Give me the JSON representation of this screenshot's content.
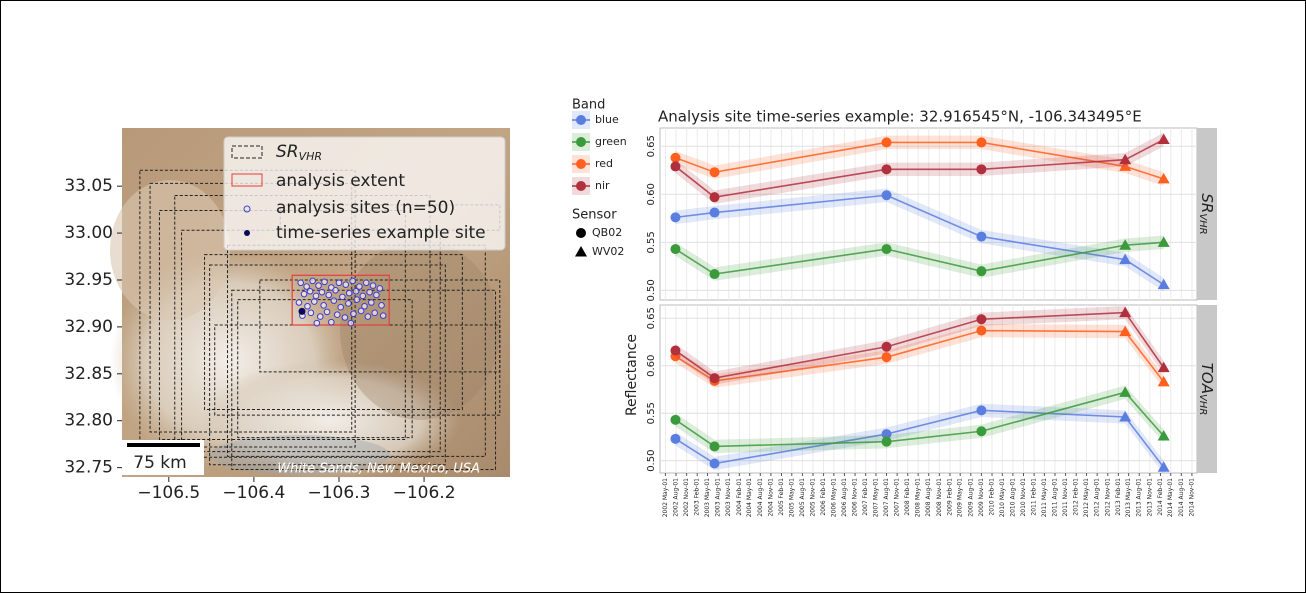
{
  "chart_data": [
    {
      "type": "map",
      "xlim": [
        -106.555,
        -106.099
      ],
      "ylim": [
        32.74,
        33.112
      ],
      "xticks": [
        {
          "value": -106.5,
          "label": "−106.5"
        },
        {
          "value": -106.4,
          "label": "−106.4"
        },
        {
          "value": -106.3,
          "label": "−106.3"
        },
        {
          "value": -106.2,
          "label": "−106.2"
        }
      ],
      "yticks": [
        32.75,
        {
          "value": 32.8,
          "label": "32.80"
        },
        32.85,
        {
          "value": 32.9,
          "label": "32.90"
        },
        32.95,
        {
          "value": 33.0,
          "label": "33.00"
        },
        33.05
      ],
      "footprint_color": "#222222",
      "extent_color": "#e83c3c",
      "site_color": "#3c3cd2",
      "example_color": "#0a0a5a",
      "footprints": [
        {
          "x": [
            -106.534,
            -106.281
          ],
          "y": [
            32.772,
            33.067
          ]
        },
        {
          "x": [
            -106.522,
            -106.285
          ],
          "y": [
            32.788,
            33.053
          ]
        },
        {
          "x": [
            -106.511,
            -106.222
          ],
          "y": [
            32.78,
            33.024
          ]
        },
        {
          "x": [
            -106.493,
            -106.193
          ],
          "y": [
            32.761,
            33.04
          ]
        },
        {
          "x": [
            -106.485,
            -106.181
          ],
          "y": [
            32.767,
            33.003
          ]
        },
        {
          "x": [
            -106.458,
            -106.155
          ],
          "y": [
            32.812,
            32.977
          ]
        },
        {
          "x": [
            -106.431,
            -106.128
          ],
          "y": [
            32.762,
            32.987
          ]
        },
        {
          "x": [
            -106.452,
            -106.175
          ],
          "y": [
            32.753,
            32.966
          ]
        },
        {
          "x": [
            -106.393,
            -106.111
          ],
          "y": [
            32.852,
            32.95
          ]
        },
        {
          "x": [
            -106.426,
            -106.116
          ],
          "y": [
            32.748,
            32.939
          ]
        },
        {
          "x": [
            -106.419,
            -106.214
          ],
          "y": [
            32.782,
            32.929
          ]
        },
        {
          "x": [
            -106.446,
            -106.111
          ],
          "y": [
            32.806,
            32.902
          ]
        },
        {
          "x": [
            -106.369,
            -106.111
          ],
          "y": [
            33.003,
            33.03
          ]
        }
      ],
      "extent": {
        "x": [
          -106.355,
          -106.241
        ],
        "y": [
          32.902,
          32.955
        ]
      },
      "sites": {
        "x": [
          -106.345,
          -106.338,
          -106.331,
          -106.324,
          -106.317,
          -106.309,
          -106.3,
          -106.292,
          -106.284,
          -106.276,
          -106.268,
          -106.26,
          -106.252,
          -106.341,
          -106.334,
          -106.327,
          -106.32,
          -106.312,
          -106.304,
          -106.296,
          -106.288,
          -106.28,
          -106.272,
          -106.264,
          -106.256,
          -106.347,
          -106.337,
          -106.329,
          -106.318,
          -106.306,
          -106.298,
          -106.289,
          -106.279,
          -106.27,
          -106.262,
          -106.25,
          -106.343,
          -106.333,
          -106.322,
          -106.314,
          -106.302,
          -106.293,
          -106.283,
          -106.274,
          -106.266,
          -106.258,
          -106.248,
          -106.326,
          -106.309,
          -106.286
        ],
        "y": [
          32.947,
          32.943,
          32.949,
          32.944,
          32.948,
          32.942,
          32.947,
          32.945,
          32.949,
          32.943,
          32.947,
          32.944,
          32.941,
          32.935,
          32.938,
          32.933,
          32.937,
          32.934,
          32.939,
          32.932,
          32.936,
          32.938,
          32.933,
          32.937,
          32.934,
          32.926,
          32.922,
          32.927,
          32.923,
          32.928,
          32.921,
          32.925,
          32.929,
          32.922,
          32.926,
          32.923,
          32.912,
          32.915,
          32.911,
          32.916,
          32.913,
          32.91,
          32.914,
          32.917,
          32.911,
          32.915,
          32.912,
          32.904,
          32.905,
          32.904
        ]
      },
      "example_site": {
        "x": -106.343495,
        "y": 32.916545
      },
      "legend": [
        {
          "label": "SR",
          "sub": "VHR"
        },
        {
          "label": "analysis extent"
        },
        {
          "label": "analysis sites (n=50)"
        },
        {
          "label": "time-series example site"
        }
      ],
      "scale_bar": "75 km",
      "annotation": "White Sands, New Mexico, USA"
    },
    {
      "type": "line",
      "title": "Analysis site time-series example: 32.916545°N, -106.343495°E",
      "ylabel": "Reflectance",
      "band_title": "Band",
      "sensor_title": "Sensor",
      "bands": [
        {
          "name": "blue",
          "color": "#5a7de0"
        },
        {
          "name": "green",
          "color": "#3b9a3b"
        },
        {
          "name": "red",
          "color": "#ff6020"
        },
        {
          "name": "nir",
          "color": "#b0303e"
        }
      ],
      "sensors": [
        {
          "name": "QB02",
          "marker": "circle"
        },
        {
          "name": "WV02",
          "marker": "triangle"
        }
      ],
      "x": [
        "2002-07-27",
        "2003-07-01",
        "2007-08-01",
        "2009-11-01",
        "2013-04-01",
        "2014-03-01"
      ],
      "sensor": [
        0,
        0,
        0,
        0,
        1,
        1
      ],
      "xlim": [
        "2002-03-15",
        "2014-12-15"
      ],
      "xticks": [
        {
          "value": "2002-05-01",
          "label": "2002 May-01"
        },
        {
          "value": "2002-08-01",
          "label": "2002 Aug-01"
        },
        {
          "value": "2002-11-01",
          "label": "2002 Nov-01"
        },
        {
          "value": "2003-02-01",
          "label": "2003 Feb-01"
        },
        {
          "value": "2003-05-01",
          "label": "2003 May-01"
        },
        {
          "value": "2003-08-01",
          "label": "2003 Aug-01"
        },
        {
          "value": "2003-11-01",
          "label": "2003 Nov-01"
        },
        {
          "value": "2004-02-01",
          "label": "2004 Feb-01"
        },
        {
          "value": "2004-05-01",
          "label": "2004 May-01"
        },
        {
          "value": "2004-08-01",
          "label": "2004 Aug-01"
        },
        {
          "value": "2004-11-01",
          "label": "2004 Nov-01"
        },
        {
          "value": "2005-02-01",
          "label": "2005 Feb-01"
        },
        {
          "value": "2005-05-01",
          "label": "2005 May-01"
        },
        {
          "value": "2005-08-01",
          "label": "2005 Aug-01"
        },
        {
          "value": "2005-11-01",
          "label": "2005 Nov-01"
        },
        {
          "value": "2006-02-01",
          "label": "2006 Feb-01"
        },
        {
          "value": "2006-05-01",
          "label": "2006 May-01"
        },
        {
          "value": "2006-08-01",
          "label": "2006 Aug-01"
        },
        {
          "value": "2006-11-01",
          "label": "2006 Nov-01"
        },
        {
          "value": "2007-02-01",
          "label": "2007 Feb-01"
        },
        {
          "value": "2007-05-01",
          "label": "2007 May-01"
        },
        {
          "value": "2007-08-01",
          "label": "2007 Aug-01"
        },
        {
          "value": "2007-11-01",
          "label": "2007 Nov-01"
        },
        {
          "value": "2008-02-01",
          "label": "2008 Feb-01"
        },
        {
          "value": "2008-05-01",
          "label": "2008 May-01"
        },
        {
          "value": "2008-08-01",
          "label": "2008 Aug-01"
        },
        {
          "value": "2008-11-01",
          "label": "2008 Nov-01"
        },
        {
          "value": "2009-02-01",
          "label": "2009 Feb-01"
        },
        {
          "value": "2009-05-01",
          "label": "2009 May-01"
        },
        {
          "value": "2009-08-01",
          "label": "2009 Aug-01"
        },
        {
          "value": "2009-11-01",
          "label": "2009 Nov-01"
        },
        {
          "value": "2010-02-01",
          "label": "2010 Feb-01"
        },
        {
          "value": "2010-05-01",
          "label": "2010 May-01"
        },
        {
          "value": "2010-08-01",
          "label": "2010 Aug-01"
        },
        {
          "value": "2010-11-01",
          "label": "2010 Nov-01"
        },
        {
          "value": "2011-02-01",
          "label": "2011 Feb-01"
        },
        {
          "value": "2011-05-01",
          "label": "2011 May-01"
        },
        {
          "value": "2011-08-01",
          "label": "2011 Aug-01"
        },
        {
          "value": "2011-11-01",
          "label": "2011 Nov-01"
        },
        {
          "value": "2012-02-01",
          "label": "2012 Feb-01"
        },
        {
          "value": "2012-05-01",
          "label": "2012 May-01"
        },
        {
          "value": "2012-08-01",
          "label": "2012 Aug-01"
        },
        {
          "value": "2012-11-01",
          "label": "2012 Nov-01"
        },
        {
          "value": "2013-02-01",
          "label": "2013 Feb-01"
        },
        {
          "value": "2013-05-01",
          "label": "2013 May-01"
        },
        {
          "value": "2013-08-01",
          "label": "2013 Aug-01"
        },
        {
          "value": "2013-11-01",
          "label": "2013 Nov-01"
        },
        {
          "value": "2014-02-01",
          "label": "2014 Feb-01"
        },
        {
          "value": "2014-05-01",
          "label": "2014 May-01"
        },
        {
          "value": "2014-08-01",
          "label": "2014 Aug-01"
        },
        {
          "value": "2014-11-01",
          "label": "2014 Nov-01"
        }
      ],
      "grid": true,
      "facets": [
        {
          "label": "SR",
          "sub": "VHR",
          "ylim": [
            0.49,
            0.669
          ],
          "ribbon": 0.007,
          "yticks": [
            {
              "value": 0.5,
              "label": "0.50"
            },
            0.55,
            {
              "value": 0.6,
              "label": "0.60"
            },
            0.65
          ],
          "values": [
            [
              0.576,
              0.581,
              0.599,
              0.556,
              0.532,
              0.506
            ],
            [
              0.543,
              0.517,
              0.543,
              0.52,
              0.547,
              0.55
            ],
            [
              0.638,
              0.623,
              0.654,
              0.654,
              0.629,
              0.616
            ],
            [
              0.629,
              0.597,
              0.626,
              0.626,
              0.636,
              0.657
            ]
          ]
        },
        {
          "label": "TOA",
          "sub": "VHR",
          "ylim": [
            0.487,
            0.664
          ],
          "ribbon": 0.007,
          "yticks": [
            {
              "value": 0.5,
              "label": "0.50"
            },
            0.55,
            {
              "value": 0.6,
              "label": "0.60"
            },
            0.65
          ],
          "values": [
            [
              0.523,
              0.497,
              0.528,
              0.553,
              0.546,
              0.493
            ],
            [
              0.543,
              0.515,
              0.52,
              0.531,
              0.572,
              0.526
            ],
            [
              0.61,
              0.584,
              0.609,
              0.637,
              0.636,
              0.583
            ],
            [
              0.616,
              0.587,
              0.62,
              0.649,
              0.656,
              0.598
            ]
          ]
        }
      ]
    }
  ]
}
